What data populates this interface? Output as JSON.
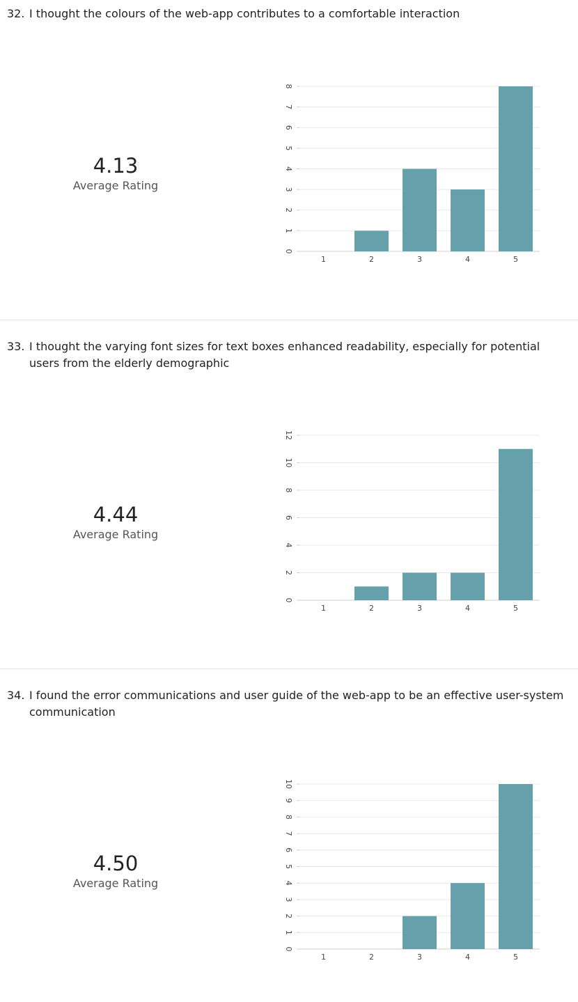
{
  "questions": [
    {
      "number": "32.",
      "text": "I thought the colours of the web-app contributes to a comfortable interaction",
      "average": "4.13",
      "average_label": "Average Rating"
    },
    {
      "number": "33.",
      "text": "I thought the varying font sizes for text boxes enhanced readability, especially for potential users from the elderly demographic",
      "average": "4.44",
      "average_label": "Average Rating"
    },
    {
      "number": "34.",
      "text": "I found the error communications and user guide of the web-app to be an effective user-system communication",
      "average": "4.50",
      "average_label": "Average Rating"
    }
  ],
  "colors": {
    "bar": "#66a0aa",
    "grid": "#e8e8e8",
    "axis_text": "#444444"
  },
  "chart_data": [
    {
      "type": "bar",
      "categories": [
        "1",
        "2",
        "3",
        "4",
        "5"
      ],
      "values": [
        0,
        1,
        4,
        3,
        8
      ],
      "ylim": [
        0,
        8
      ],
      "yticks": [
        0,
        1,
        2,
        3,
        4,
        5,
        6,
        7,
        8
      ],
      "grid": true,
      "title": "",
      "xlabel": "",
      "ylabel": ""
    },
    {
      "type": "bar",
      "categories": [
        "1",
        "2",
        "3",
        "4",
        "5"
      ],
      "values": [
        0,
        1,
        2,
        2,
        11
      ],
      "ylim": [
        0,
        12
      ],
      "yticks": [
        0,
        2,
        4,
        6,
        8,
        10,
        12
      ],
      "grid": true,
      "title": "",
      "xlabel": "",
      "ylabel": ""
    },
    {
      "type": "bar",
      "categories": [
        "1",
        "2",
        "3",
        "4",
        "5"
      ],
      "values": [
        0,
        0,
        2,
        4,
        10
      ],
      "ylim": [
        0,
        10
      ],
      "yticks": [
        0,
        1,
        2,
        3,
        4,
        5,
        6,
        7,
        8,
        9,
        10
      ],
      "grid": true,
      "title": "",
      "xlabel": "",
      "ylabel": ""
    }
  ]
}
